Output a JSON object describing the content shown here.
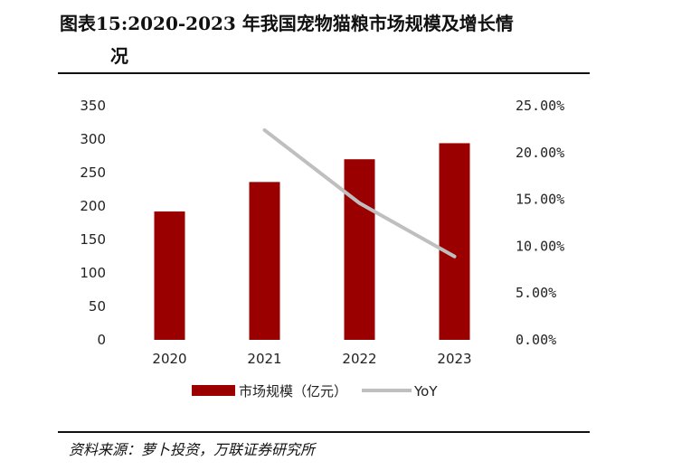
{
  "header": {
    "title_line1": "图表15:2020-2023 年我国宠物猫粮市场规模及增长情",
    "title_line2": "况"
  },
  "footer": {
    "source": "资料来源：萝卜投资，万联证券研究所"
  },
  "colors": {
    "bar": "#9b0000",
    "line": "#bfbfbf"
  },
  "chart_data": {
    "type": "bar",
    "categories": [
      "2020",
      "2021",
      "2022",
      "2023"
    ],
    "series": [
      {
        "name": "市场规模（亿元）",
        "type": "bar",
        "axis": "left",
        "values": [
          192,
          236,
          270,
          294
        ]
      },
      {
        "name": "YoY",
        "type": "line",
        "axis": "right",
        "values": [
          null,
          22.4,
          14.6,
          8.9
        ]
      }
    ],
    "y_left": {
      "min": 0,
      "max": 350,
      "ticks": [
        "0",
        "50",
        "100",
        "150",
        "200",
        "250",
        "300",
        "350"
      ]
    },
    "y_right": {
      "min": 0,
      "max": 25,
      "ticks": [
        "0.00%",
        "5.00%",
        "10.00%",
        "15.00%",
        "20.00%",
        "25.00%"
      ]
    },
    "grid": false,
    "legend_position": "bottom"
  }
}
